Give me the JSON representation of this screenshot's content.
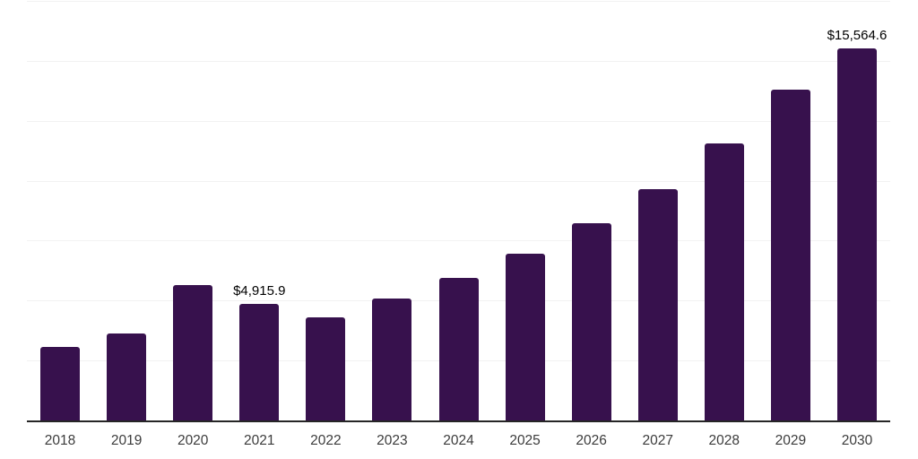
{
  "chart_data": {
    "type": "bar",
    "title": "",
    "xlabel": "",
    "ylabel": "",
    "categories": [
      "2018",
      "2019",
      "2020",
      "2021",
      "2022",
      "2023",
      "2024",
      "2025",
      "2026",
      "2027",
      "2028",
      "2029",
      "2030"
    ],
    "values": [
      3120,
      3680,
      5680,
      4915.9,
      4350,
      5130,
      5980,
      6980,
      8250,
      9700,
      11590,
      13820,
      15564.6
    ],
    "value_labels": {
      "2021": "$4,915.9",
      "2030": "$15,564.6"
    },
    "ylim": [
      0,
      17500
    ],
    "gridline_step": 2500,
    "grid": "horizontal-only",
    "legend": "none",
    "y_axis_tick_labels": "none",
    "colors": {
      "bar": "#37114d",
      "axis_line": "#262626",
      "gridline": "#f2f2f2",
      "tick_label": "#3c3c3c",
      "value_label": "#000000",
      "background": "#ffffff"
    }
  }
}
